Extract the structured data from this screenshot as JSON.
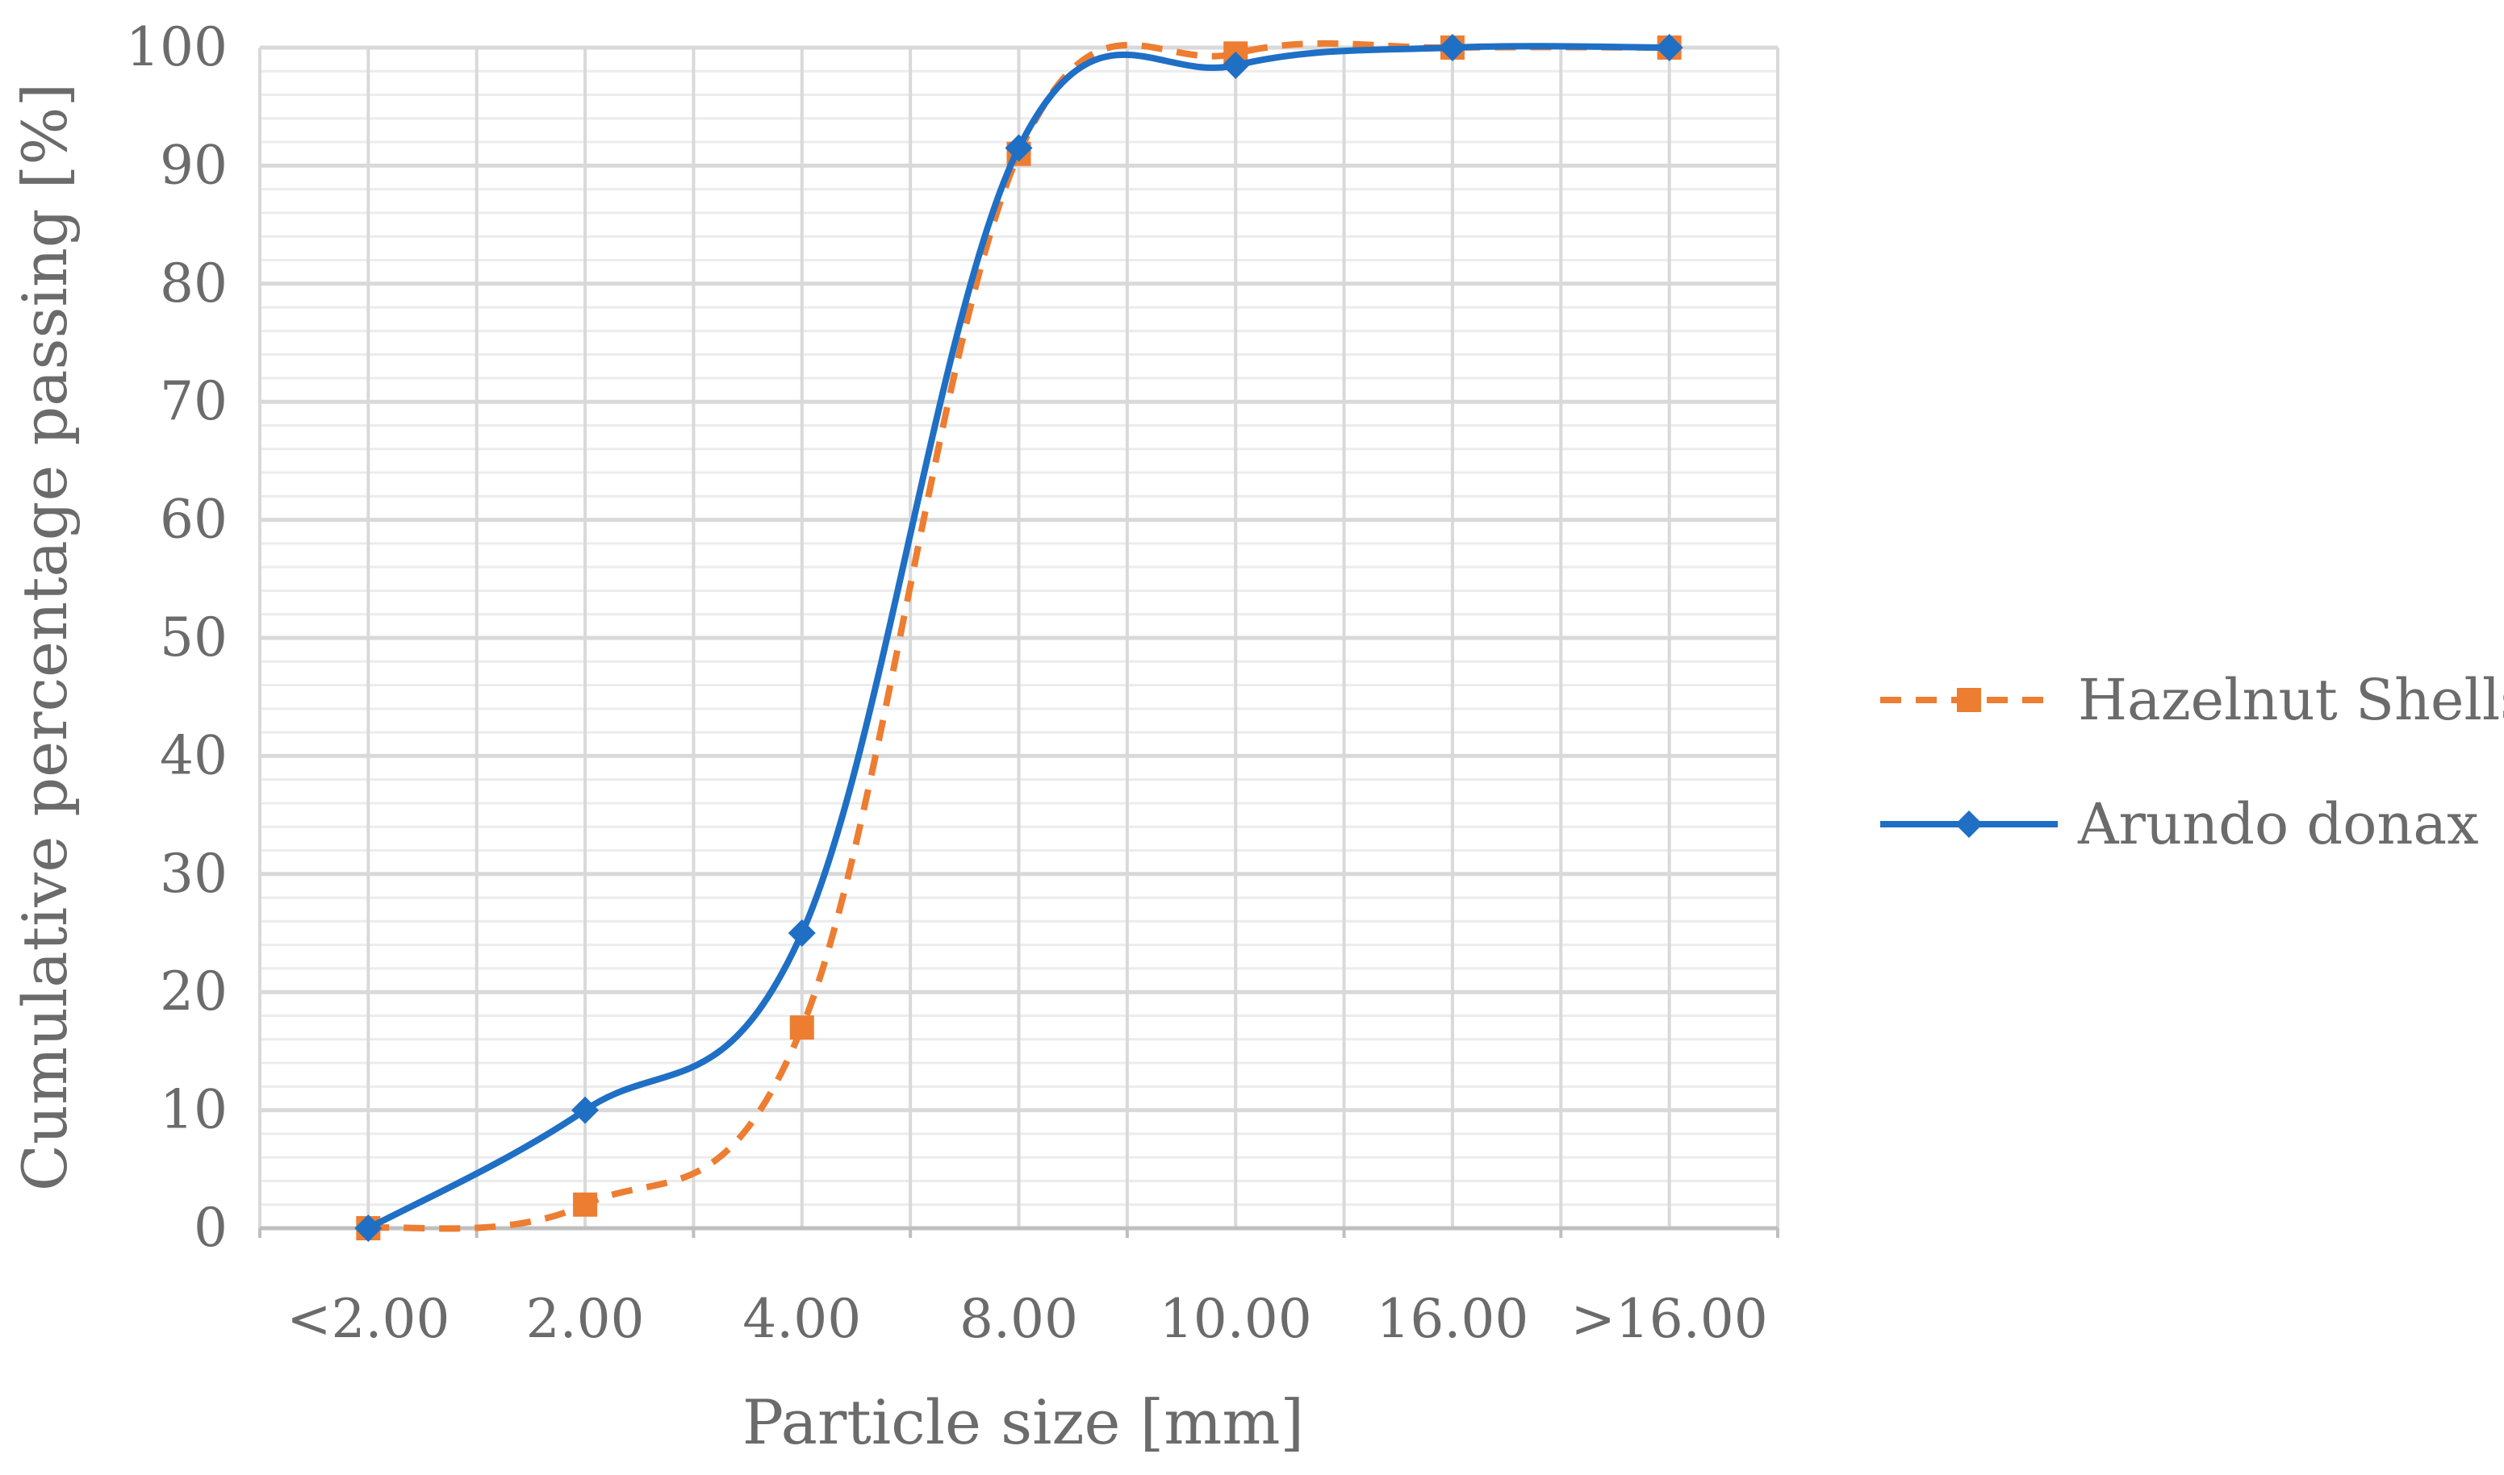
{
  "chart_data": {
    "type": "line",
    "categories": [
      "<2.00",
      "2.00",
      "4.00",
      "8.00",
      "10.00",
      "16.00",
      ">16.00"
    ],
    "series": [
      {
        "name": "Hazelnut Shells",
        "values": [
          0,
          2,
          17,
          91,
          99.5,
          100,
          100
        ],
        "color": "#ED7D31",
        "dash": "dashed",
        "marker": "square"
      },
      {
        "name": "Arundo donax",
        "values": [
          0,
          10,
          25,
          91.5,
          98.5,
          100,
          100
        ],
        "color": "#1F6FC5",
        "dash": "solid",
        "marker": "diamond"
      }
    ],
    "xlabel": "Particle size [mm]",
    "ylabel": "Cumulative percentage passing [%]",
    "ylim": [
      0,
      100
    ],
    "yticks": [
      0,
      10,
      20,
      30,
      40,
      50,
      60,
      70,
      80,
      90,
      100
    ],
    "grid": true,
    "minor_grid": true,
    "legend_position": "right"
  }
}
